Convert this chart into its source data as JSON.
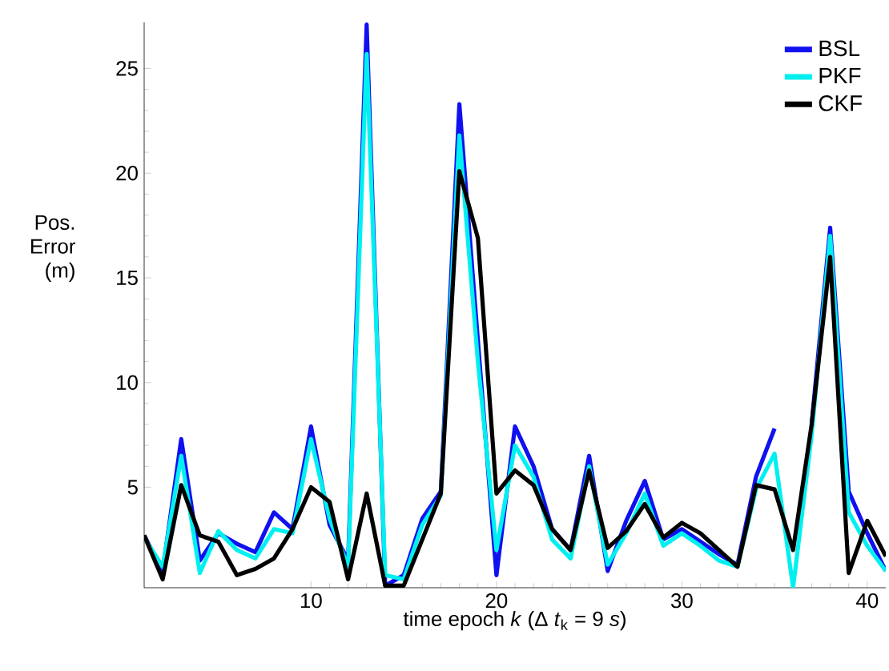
{
  "chart_data": {
    "type": "line",
    "xlabel": "time epoch *k* (Δ *t*$_{k}$ = 9 *s*)",
    "ylabel": "Pos. Error (m)",
    "x": [
      1,
      2,
      3,
      4,
      5,
      6,
      7,
      8,
      9,
      10,
      11,
      12,
      13,
      14,
      15,
      16,
      17,
      18,
      19,
      20,
      21,
      22,
      23,
      24,
      25,
      26,
      27,
      28,
      29,
      30,
      31,
      32,
      33,
      34,
      35,
      36,
      37,
      38,
      39,
      40,
      41
    ],
    "series": [
      {
        "name": "BSL",
        "color": "#1010f0",
        "values": [
          2.7,
          1.0,
          7.3,
          1.5,
          2.8,
          2.3,
          1.9,
          3.8,
          3.0,
          7.9,
          3.2,
          1.5,
          27.1,
          0.3,
          0.8,
          3.5,
          4.8,
          23.3,
          12,
          0.8,
          7.9,
          6,
          3,
          2,
          6.5,
          1.0,
          3.4,
          5.3,
          2.5,
          3,
          2.4,
          1.8,
          1.3,
          5.5,
          7.8,
          null,
          8,
          17.4,
          4.8,
          2.8,
          1.0
        ]
      },
      {
        "name": "PKF",
        "color": "#00f0f0",
        "values": [
          2.6,
          1.2,
          6.5,
          0.9,
          2.9,
          2.0,
          1.6,
          3.0,
          2.8,
          7.3,
          3.5,
          1.2,
          25.7,
          0.8,
          0.6,
          3.2,
          4.6,
          21.8,
          11,
          2.0,
          7.0,
          5.5,
          2.5,
          1.6,
          6.0,
          1.3,
          2.8,
          4.7,
          2.2,
          2.8,
          2.2,
          1.5,
          1.2,
          4.9,
          6.6,
          0.2,
          7.5,
          17.0,
          3.8,
          2.2,
          1.0
        ]
      },
      {
        "name": "CKF",
        "color": "#000000",
        "values": [
          2.7,
          0.6,
          5.1,
          2.7,
          2.4,
          0.8,
          1.1,
          1.6,
          3.0,
          5.0,
          4.3,
          0.6,
          4.7,
          0.3,
          0.3,
          2.5,
          4.7,
          20.1,
          16.9,
          4.7,
          5.8,
          5.1,
          3.0,
          2.0,
          5.8,
          2.1,
          2.9,
          4.2,
          2.6,
          3.3,
          2.8,
          2.0,
          1.2,
          5.1,
          4.9,
          2.0,
          8.0,
          16.0,
          0.9,
          3.4,
          1.7
        ]
      }
    ],
    "xlim": [
      1,
      41
    ],
    "xticks": [
      10,
      20,
      30,
      40
    ],
    "ylim": [
      0.2,
      27.2
    ],
    "yticks": [
      5,
      10,
      15,
      20,
      25
    ],
    "legend": "top right",
    "grid": false,
    "marker": "none",
    "line_style": "solid"
  }
}
